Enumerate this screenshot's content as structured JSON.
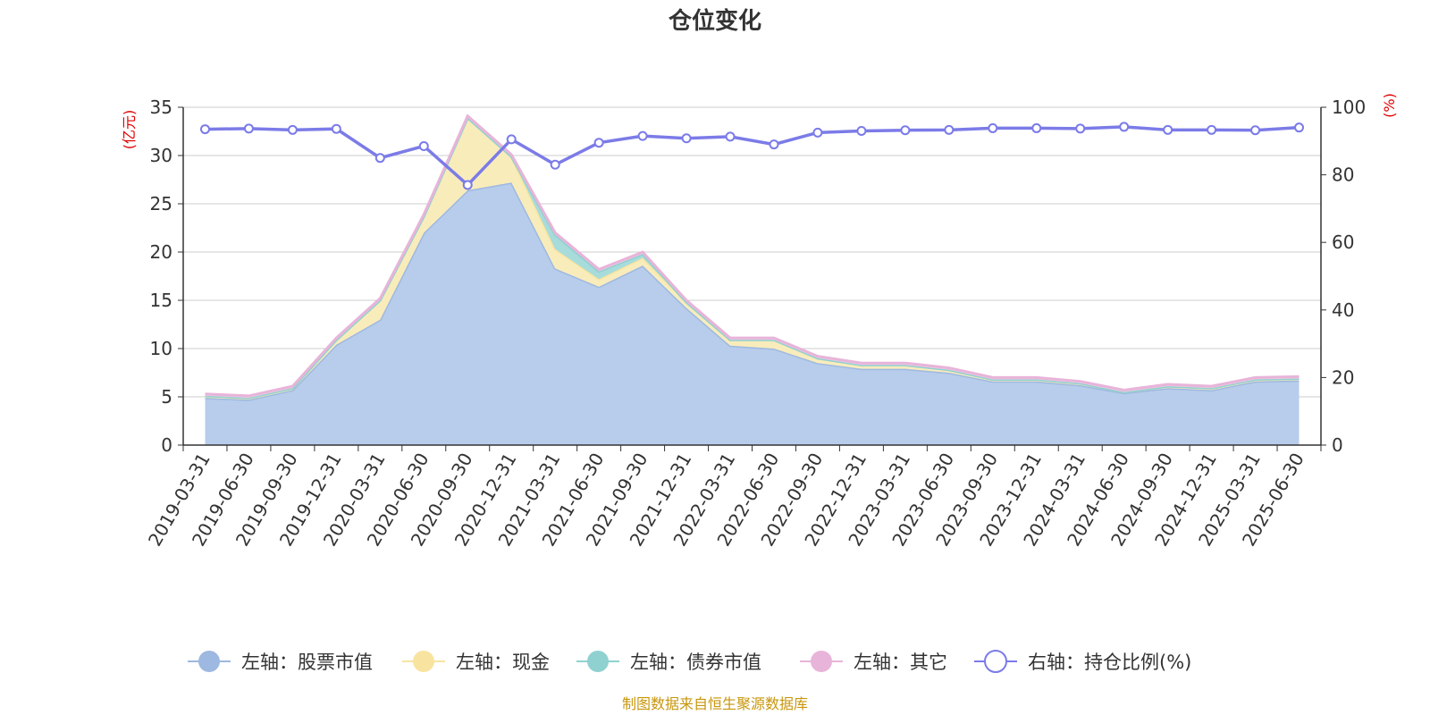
{
  "chart_data": {
    "type": "area",
    "title": "仓位变化",
    "categories": [
      "2019-03-31",
      "2019-06-30",
      "2019-09-30",
      "2019-12-31",
      "2020-03-31",
      "2020-06-30",
      "2020-09-30",
      "2020-12-31",
      "2021-03-31",
      "2021-06-30",
      "2021-09-30",
      "2021-12-31",
      "2022-03-31",
      "2022-06-30",
      "2022-09-30",
      "2022-12-31",
      "2023-03-31",
      "2023-06-30",
      "2023-09-30",
      "2023-12-31",
      "2024-03-31",
      "2024-06-30",
      "2024-09-30",
      "2024-12-31",
      "2025-03-31",
      "2025-06-30"
    ],
    "left_axis": {
      "unit": "(亿元)",
      "min": 0,
      "max": 35,
      "ticks": [
        0,
        5,
        10,
        15,
        20,
        25,
        30,
        35
      ]
    },
    "right_axis": {
      "unit": "(%)",
      "min": 0,
      "max": 100,
      "ticks": [
        0,
        20,
        40,
        60,
        80,
        100
      ]
    },
    "series": [
      {
        "name": "左轴：股票市值",
        "axis": "left",
        "stack": true,
        "color": "#9db8e1",
        "fill": "#b8cdeb",
        "values": [
          4.9,
          4.7,
          5.7,
          10.4,
          13.0,
          22.0,
          26.4,
          27.2,
          18.3,
          16.4,
          18.6,
          14.2,
          10.3,
          10.0,
          8.5,
          7.9,
          7.9,
          7.5,
          6.6,
          6.6,
          6.2,
          5.4,
          5.9,
          5.7,
          6.6,
          6.7
        ]
      },
      {
        "name": "左轴：现金",
        "axis": "left",
        "stack": true,
        "color": "#f8e4a0",
        "fill": "#f9ecbb",
        "values": [
          0.2,
          0.2,
          0.2,
          0.5,
          2.0,
          1.7,
          7.5,
          2.7,
          2.0,
          0.8,
          0.8,
          0.6,
          0.6,
          0.9,
          0.5,
          0.4,
          0.4,
          0.3,
          0.2,
          0.2,
          0.2,
          0.1,
          0.2,
          0.2,
          0.2,
          0.2
        ]
      },
      {
        "name": "左轴：债券市值",
        "axis": "left",
        "stack": true,
        "color": "#8fd1d0",
        "fill": "#a7dcdb",
        "values": [
          0,
          0,
          0,
          0,
          0,
          0,
          0,
          0,
          1.5,
          0.8,
          0.4,
          0,
          0,
          0,
          0,
          0,
          0,
          0,
          0,
          0,
          0,
          0,
          0,
          0,
          0,
          0
        ]
      },
      {
        "name": "左轴：其它",
        "axis": "left",
        "stack": true,
        "color": "#e8b4d9",
        "fill": "#f0cde6",
        "values": [
          0.2,
          0.2,
          0.2,
          0.2,
          0.2,
          0.2,
          0.2,
          0.2,
          0.2,
          0.2,
          0.2,
          0.2,
          0.2,
          0.2,
          0.2,
          0.2,
          0.2,
          0.2,
          0.2,
          0.2,
          0.2,
          0.2,
          0.2,
          0.2,
          0.2,
          0.2
        ]
      },
      {
        "name": "右轴：持仓比例(%)",
        "axis": "right",
        "type": "line",
        "color": "#7b7be8",
        "values": [
          93.5,
          93.7,
          93.3,
          93.6,
          85.0,
          88.5,
          77.0,
          90.5,
          83.0,
          89.5,
          91.5,
          90.8,
          91.3,
          89.0,
          92.5,
          93.0,
          93.2,
          93.3,
          93.8,
          93.8,
          93.7,
          94.2,
          93.3,
          93.3,
          93.2,
          94.0
        ]
      }
    ],
    "legend_position": "bottom",
    "grid": true
  },
  "source_text": "制图数据来自恒生聚源数据库"
}
